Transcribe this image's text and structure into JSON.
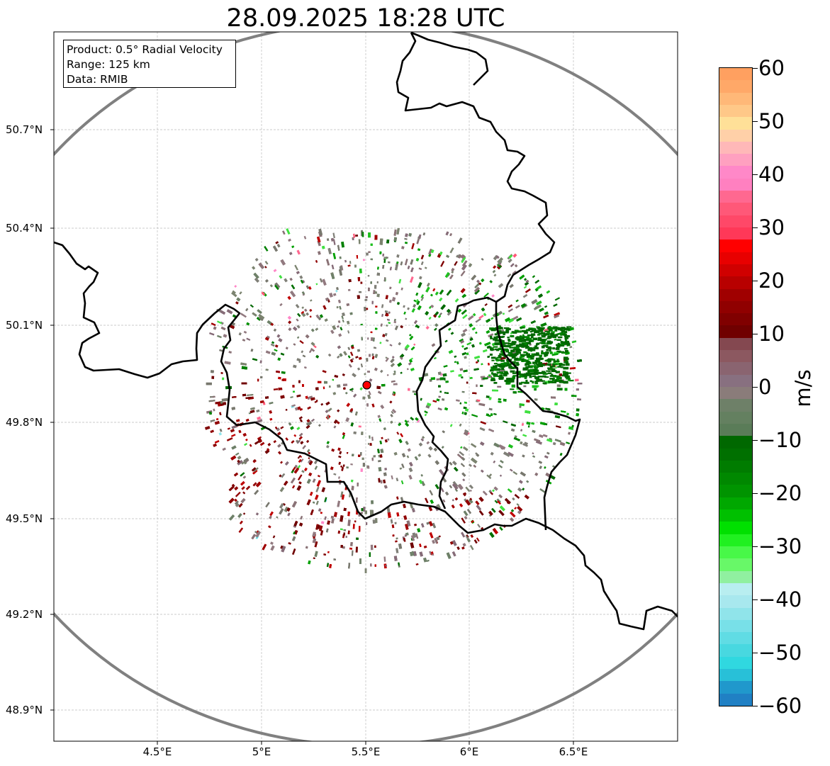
{
  "title": "28.09.2025 18:28 UTC",
  "info_box": {
    "product": "Product: 0.5° Radial Velocity",
    "range": "Range: 125 km",
    "data": "Data: RMIB"
  },
  "map": {
    "lat_ticks": [
      "50.7°N",
      "50.4°N",
      "50.1°N",
      "49.8°N",
      "49.5°N",
      "49.2°N",
      "48.9°N"
    ],
    "lon_ticks": [
      "4.5°E",
      "5°E",
      "5.5°E",
      "6°E",
      "6.5°E"
    ],
    "radar_site": {
      "lon": 5.5,
      "lat": 49.914
    },
    "range_ring_color": "#808080",
    "border_color": "#000000",
    "grid": true
  },
  "colorbar": {
    "unit": "m/s",
    "min": -60,
    "max": 60,
    "tick_labels": [
      "60",
      "50",
      "40",
      "30",
      "20",
      "10",
      "0",
      "−10",
      "−20",
      "−30",
      "−40",
      "−50",
      "−60"
    ]
  }
}
